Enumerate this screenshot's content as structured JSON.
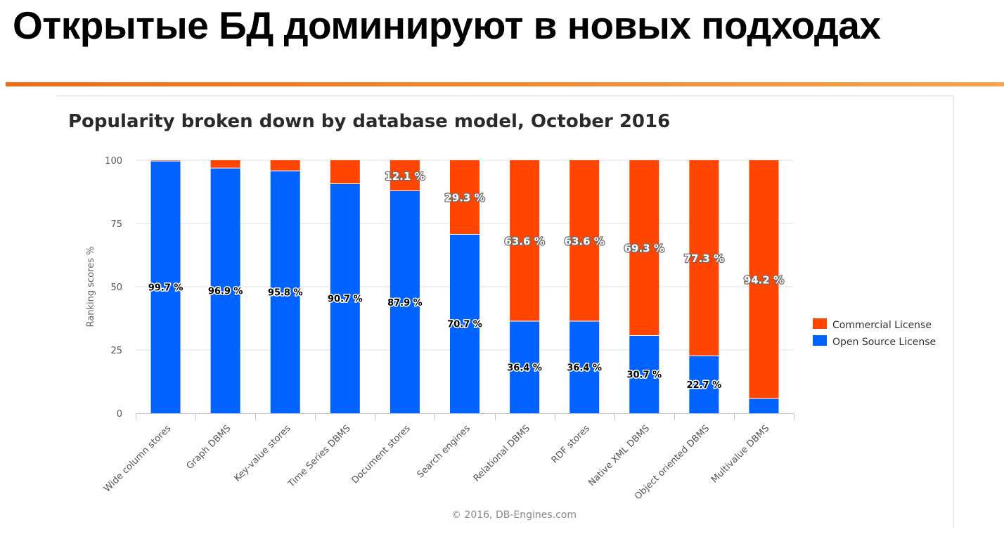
{
  "slide": {
    "title": "Открытые БД доминируют в новых подходах"
  },
  "colors": {
    "commercial": "#ff4500",
    "open_source": "#0063ff",
    "accent_rule": "#f26a11"
  },
  "chart_data": {
    "type": "bar",
    "stacked": true,
    "title": "Popularity broken down by database model, October 2016",
    "xlabel": "",
    "ylabel": "Ranking scores %",
    "ylim": [
      0,
      100
    ],
    "yticks": [
      0,
      25,
      50,
      75,
      100
    ],
    "grid": true,
    "legend_position": "right",
    "categories": [
      "Wide column stores",
      "Graph DBMS",
      "Key-value stores",
      "Time Series DBMS",
      "Document stores",
      "Search engines",
      "Relational DBMS",
      "RDF stores",
      "Native XML DBMS",
      "Object oriented DBMS",
      "Multivalue DBMS"
    ],
    "series": [
      {
        "name": "Commercial License",
        "color": "#ff4500",
        "values": [
          0.3,
          3.1,
          4.2,
          9.3,
          12.1,
          29.3,
          63.6,
          63.6,
          69.3,
          77.3,
          94.2
        ],
        "labels": [
          "",
          "",
          "",
          "",
          "12.1 %",
          "29.3 %",
          "63.6 %",
          "63.6 %",
          "69.3 %",
          "77.3 %",
          "94.2 %"
        ]
      },
      {
        "name": "Open Source License",
        "color": "#0063ff",
        "values": [
          99.7,
          96.9,
          95.8,
          90.7,
          87.9,
          70.7,
          36.4,
          36.4,
          30.7,
          22.7,
          5.8
        ],
        "labels": [
          "99.7 %",
          "96.9 %",
          "95.8 %",
          "90.7 %",
          "87.9 %",
          "70.7 %",
          "36.4 %",
          "36.4 %",
          "30.7 %",
          "22.7 %",
          ""
        ]
      }
    ],
    "credit": "© 2016, DB-Engines.com"
  }
}
